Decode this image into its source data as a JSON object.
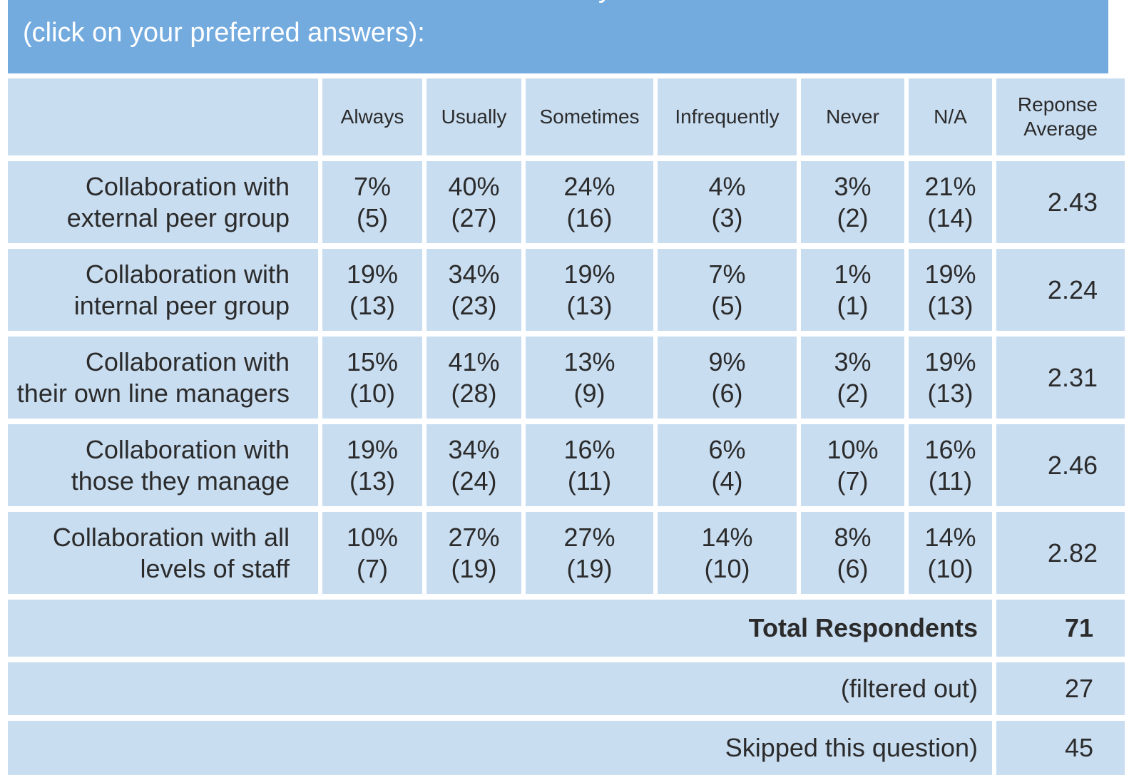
{
  "banner": {
    "question_line1": "collaborate with others below to achieve mutually desirable outcomes",
    "question_line2": "(click on your preferred answers):"
  },
  "colors": {
    "banner_bg": "#73abdf",
    "cell_bg": "#c9ddf1",
    "text": "#2b2b2b",
    "banner_text": "#ffffff",
    "grid_gap": "#ffffff"
  },
  "table": {
    "headers": {
      "always": "Always",
      "usually": "Usually",
      "sometimes": "Sometimes",
      "infrequently": "Infrequently",
      "never": "Never",
      "na": "N/A",
      "response_average": "Reponse\nAverage"
    },
    "rows": [
      {
        "label_line1": "Collaboration with",
        "label_line2": "external peer group",
        "always": {
          "pct": "7%",
          "n": "(5)"
        },
        "usually": {
          "pct": "40%",
          "n": "(27)"
        },
        "sometimes": {
          "pct": "24%",
          "n": "(16)"
        },
        "infrequently": {
          "pct": "4%",
          "n": "(3)"
        },
        "never": {
          "pct": "3%",
          "n": "(2)"
        },
        "na": {
          "pct": "21%",
          "n": "(14)"
        },
        "avg": "2.43"
      },
      {
        "label_line1": "Collaboration with",
        "label_line2": "internal peer group",
        "always": {
          "pct": "19%",
          "n": "(13)"
        },
        "usually": {
          "pct": "34%",
          "n": "(23)"
        },
        "sometimes": {
          "pct": "19%",
          "n": "(13)"
        },
        "infrequently": {
          "pct": "7%",
          "n": "(5)"
        },
        "never": {
          "pct": "1%",
          "n": "(1)"
        },
        "na": {
          "pct": "19%",
          "n": "(13)"
        },
        "avg": "2.24"
      },
      {
        "label_line1": "Collaboration with",
        "label_line2": "their own line managers",
        "always": {
          "pct": "15%",
          "n": "(10)"
        },
        "usually": {
          "pct": "41%",
          "n": "(28)"
        },
        "sometimes": {
          "pct": "13%",
          "n": "(9)"
        },
        "infrequently": {
          "pct": "9%",
          "n": "(6)"
        },
        "never": {
          "pct": "3%",
          "n": "(2)"
        },
        "na": {
          "pct": "19%",
          "n": "(13)"
        },
        "avg": "2.31"
      },
      {
        "label_line1": "Collaboration with",
        "label_line2": "those they manage",
        "always": {
          "pct": "19%",
          "n": "(13)"
        },
        "usually": {
          "pct": "34%",
          "n": "(24)"
        },
        "sometimes": {
          "pct": "16%",
          "n": "(11)"
        },
        "infrequently": {
          "pct": "6%",
          "n": "(4)"
        },
        "never": {
          "pct": "10%",
          "n": "(7)"
        },
        "na": {
          "pct": "16%",
          "n": "(11)"
        },
        "avg": "2.46"
      },
      {
        "label_line1": "Collaboration with all",
        "label_line2": "levels of staff",
        "always": {
          "pct": "10%",
          "n": "(7)"
        },
        "usually": {
          "pct": "27%",
          "n": "(19)"
        },
        "sometimes": {
          "pct": "27%",
          "n": "(19)"
        },
        "infrequently": {
          "pct": "14%",
          "n": "(10)"
        },
        "never": {
          "pct": "8%",
          "n": "(6)"
        },
        "na": {
          "pct": "14%",
          "n": "(10)"
        },
        "avg": "2.82"
      }
    ],
    "footer": {
      "total_label": "Total Respondents",
      "total_value": "71",
      "filtered_label": "(filtered out)",
      "filtered_value": "27",
      "skipped_label": "Skipped this question)",
      "skipped_value": "45"
    }
  },
  "chart_data": {
    "type": "table",
    "title": "collaborate with others below to achieve mutually desirable outcomes (click on your preferred answers):",
    "columns": [
      "Always",
      "Usually",
      "Sometimes",
      "Infrequently",
      "Never",
      "N/A",
      "Reponse Average"
    ],
    "row_labels": [
      "Collaboration with external peer group",
      "Collaboration with internal peer group",
      "Collaboration with their own line managers",
      "Collaboration with those they manage",
      "Collaboration with all levels of staff"
    ],
    "percentages": [
      [
        7,
        40,
        24,
        4,
        3,
        21
      ],
      [
        19,
        34,
        19,
        7,
        1,
        19
      ],
      [
        15,
        41,
        13,
        9,
        3,
        19
      ],
      [
        19,
        34,
        16,
        6,
        10,
        16
      ],
      [
        10,
        27,
        27,
        14,
        8,
        14
      ]
    ],
    "counts": [
      [
        5,
        27,
        16,
        3,
        2,
        14
      ],
      [
        13,
        23,
        13,
        5,
        1,
        13
      ],
      [
        10,
        28,
        9,
        6,
        2,
        13
      ],
      [
        13,
        24,
        11,
        4,
        7,
        11
      ],
      [
        7,
        19,
        19,
        10,
        6,
        10
      ]
    ],
    "response_averages": [
      2.43,
      2.24,
      2.31,
      2.46,
      2.82
    ],
    "total_respondents": 71,
    "filtered_out": 27,
    "skipped_question": 45
  }
}
